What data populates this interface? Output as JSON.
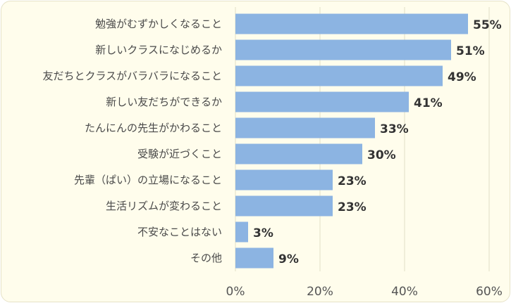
{
  "chart_data": {
    "type": "bar",
    "orientation": "horizontal",
    "categories": [
      "勉強がむずかしくなること",
      "新しいクラスになじめるか",
      "友だちとクラスがバラバラになること",
      "新しい友だちができるか",
      "たんにんの先生がかわること",
      "受験が近づくこと",
      "先輩（ぱい）の立場になること",
      "生活リズムが変わること",
      "不安なことはない",
      "その他"
    ],
    "values": [
      55,
      51,
      49,
      41,
      33,
      30,
      23,
      23,
      3,
      9
    ],
    "value_labels": [
      "55%",
      "51%",
      "49%",
      "41%",
      "33%",
      "30%",
      "23%",
      "23%",
      "3%",
      "9%"
    ],
    "x_ticks": [
      "0%",
      "20%",
      "40%",
      "60%"
    ],
    "xlim": [
      0,
      60
    ],
    "grid": true,
    "bar_color": "#8cb4e2"
  }
}
